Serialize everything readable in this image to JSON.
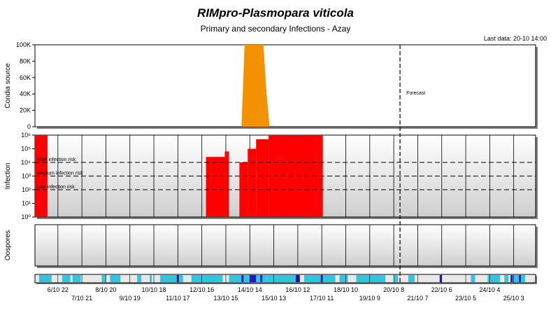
{
  "header": {
    "title": "RIMpro-Plasmopara viticola",
    "subtitle": "Primary and secondary Infections - Azay",
    "last_data": "Last data: 20-10 14:00"
  },
  "colors": {
    "conidia": "#f39200",
    "infection": "#ff0000",
    "rain_light": "#36c3e0",
    "rain_heavy": "#1020c0",
    "panel_gray": "#d4d4d4",
    "frame_shadow": "#808080"
  },
  "chart_data": [
    {
      "type": "area",
      "panel": "conidia",
      "ylabel": "Condia source",
      "y_ticks": [
        "0",
        "20K",
        "40K",
        "60K",
        "80K",
        "100K"
      ],
      "ylim": [
        0,
        100000
      ],
      "forecast_label": "Forecast",
      "series": [
        {
          "values_description": "conidia source peak",
          "x": [
            "14/10 06:00",
            "14/10 09:00",
            "14/10 12:00",
            "14/10 15:00",
            "14/10 18:00",
            "14/10 21:00",
            "15/10 00:00",
            "15/10 03:00",
            "15/10 06:00",
            "15/10 09:00"
          ],
          "y": [
            0,
            100000,
            100000,
            100000,
            100000,
            100000,
            100000,
            100000,
            40000,
            0
          ]
        }
      ]
    },
    {
      "type": "area",
      "panel": "infection",
      "ylabel": "Infection",
      "y_ticks": [
        "10⁰",
        "10¹",
        "10²",
        "10³",
        "10⁴",
        "10⁵",
        "10⁶"
      ],
      "ylim_log10": [
        0,
        6
      ],
      "risk_lines": [
        {
          "label": "High infection risk",
          "log10": 4
        },
        {
          "label": "Medium infection risk",
          "log10": 3
        },
        {
          "label": "Low infection risk",
          "log10": 2
        }
      ],
      "blocks": [
        {
          "start": "6/10 00:00",
          "end": "6/10 12:00",
          "log10": 6
        },
        {
          "start": "12/10 20:00",
          "end": "13/10 14:00",
          "log10": 4.4
        },
        {
          "start": "13/10 14:00",
          "end": "13/10 18:00",
          "log10": 4.8
        },
        {
          "start": "14/10 04:00",
          "end": "14/10 12:00",
          "log10": 4.0
        },
        {
          "start": "14/10 12:00",
          "end": "14/10 20:00",
          "log10": 5.0
        },
        {
          "start": "14/10 20:00",
          "end": "15/10 08:00",
          "log10": 5.7
        },
        {
          "start": "15/10 08:00",
          "end": "17/10 12:00",
          "log10": 6
        }
      ]
    },
    {
      "type": "bar",
      "panel": "oospores",
      "ylabel": "Oospores",
      "values": []
    },
    {
      "type": "heatmap",
      "panel": "rain",
      "x_ticks_top": [
        "6/10 22",
        "8/10 20",
        "10/10 18",
        "12/10 16",
        "14/10 14",
        "16/10 12",
        "18/10 10",
        "20/10 8",
        "22/10 6",
        "24/10 4"
      ],
      "x_ticks_bottom": [
        "7/10 21",
        "9/10 19",
        "11/10 17",
        "13/10 15",
        "15/10 13",
        "17/10 11",
        "19/10 9",
        "21/10 7",
        "23/10 5",
        "25/10 3"
      ],
      "segments": [
        {
          "start": "6/10 04:00",
          "end": "6/10 16:00",
          "level": "light"
        },
        {
          "start": "7/10 02:00",
          "end": "7/10 10:00",
          "level": "light"
        },
        {
          "start": "7/10 12:00",
          "end": "7/10 20:00",
          "level": "light"
        },
        {
          "start": "8/10 16:00",
          "end": "8/10 20:00",
          "level": "light"
        },
        {
          "start": "9/10 00:00",
          "end": "9/10 10:00",
          "level": "light"
        },
        {
          "start": "10/10 02:00",
          "end": "10/10 06:00",
          "level": "light"
        },
        {
          "start": "10/10 14:00",
          "end": "10/10 16:00",
          "level": "light"
        },
        {
          "start": "11/10 00:00",
          "end": "11/10 22:00",
          "level": "light"
        },
        {
          "start": "11/10 16:00",
          "end": "11/10 18:00",
          "level": "heavy"
        },
        {
          "start": "12/10 06:00",
          "end": "13/10 12:00",
          "level": "light"
        },
        {
          "start": "13/10 18:00",
          "end": "14/10 00:00",
          "level": "light"
        },
        {
          "start": "14/10 00:00",
          "end": "15/10 06:00",
          "level": "light"
        },
        {
          "start": "14/10 06:00",
          "end": "14/10 08:00",
          "level": "heavy"
        },
        {
          "start": "14/10 14:00",
          "end": "14/10 20:00",
          "level": "heavy"
        },
        {
          "start": "15/10 00:00",
          "end": "15/10 02:00",
          "level": "heavy"
        },
        {
          "start": "15/10 06:00",
          "end": "16/10 10:00",
          "level": "light"
        },
        {
          "start": "16/10 10:00",
          "end": "16/10 14:00",
          "level": "heavy"
        },
        {
          "start": "16/10 18:00",
          "end": "17/10 10:00",
          "level": "light"
        },
        {
          "start": "17/10 10:00",
          "end": "17/10 12:00",
          "level": "heavy"
        },
        {
          "start": "17/10 12:00",
          "end": "18/10 00:00",
          "level": "light"
        },
        {
          "start": "18/10 04:00",
          "end": "18/10 12:00",
          "level": "light"
        },
        {
          "start": "18/10 20:00",
          "end": "20/10 00:00",
          "level": "light"
        },
        {
          "start": "20/10 08:00",
          "end": "20/10 12:00",
          "level": "light"
        },
        {
          "start": "20/10 22:00",
          "end": "21/10 04:00",
          "level": "light"
        },
        {
          "start": "22/10 04:00",
          "end": "22/10 06:00",
          "level": "heavy"
        },
        {
          "start": "23/10 10:00",
          "end": "23/10 14:00",
          "level": "light"
        },
        {
          "start": "24/10 02:00",
          "end": "24/10 14:00",
          "level": "light"
        },
        {
          "start": "24/10 18:00",
          "end": "24/10 22:00",
          "level": "light"
        },
        {
          "start": "25/10 00:00",
          "end": "25/10 08:00",
          "level": "light"
        },
        {
          "start": "25/10 00:00",
          "end": "25/10 02:00",
          "level": "heavy"
        },
        {
          "start": "25/10 08:00",
          "end": "25/10 10:00",
          "level": "heavy"
        },
        {
          "start": "25/10 10:00",
          "end": "25/10 14:00",
          "level": "light"
        }
      ]
    }
  ],
  "forecast_start": "20/10 14:00",
  "timeline": {
    "start": "6/10 00:00",
    "end": "26/10 00:00"
  }
}
